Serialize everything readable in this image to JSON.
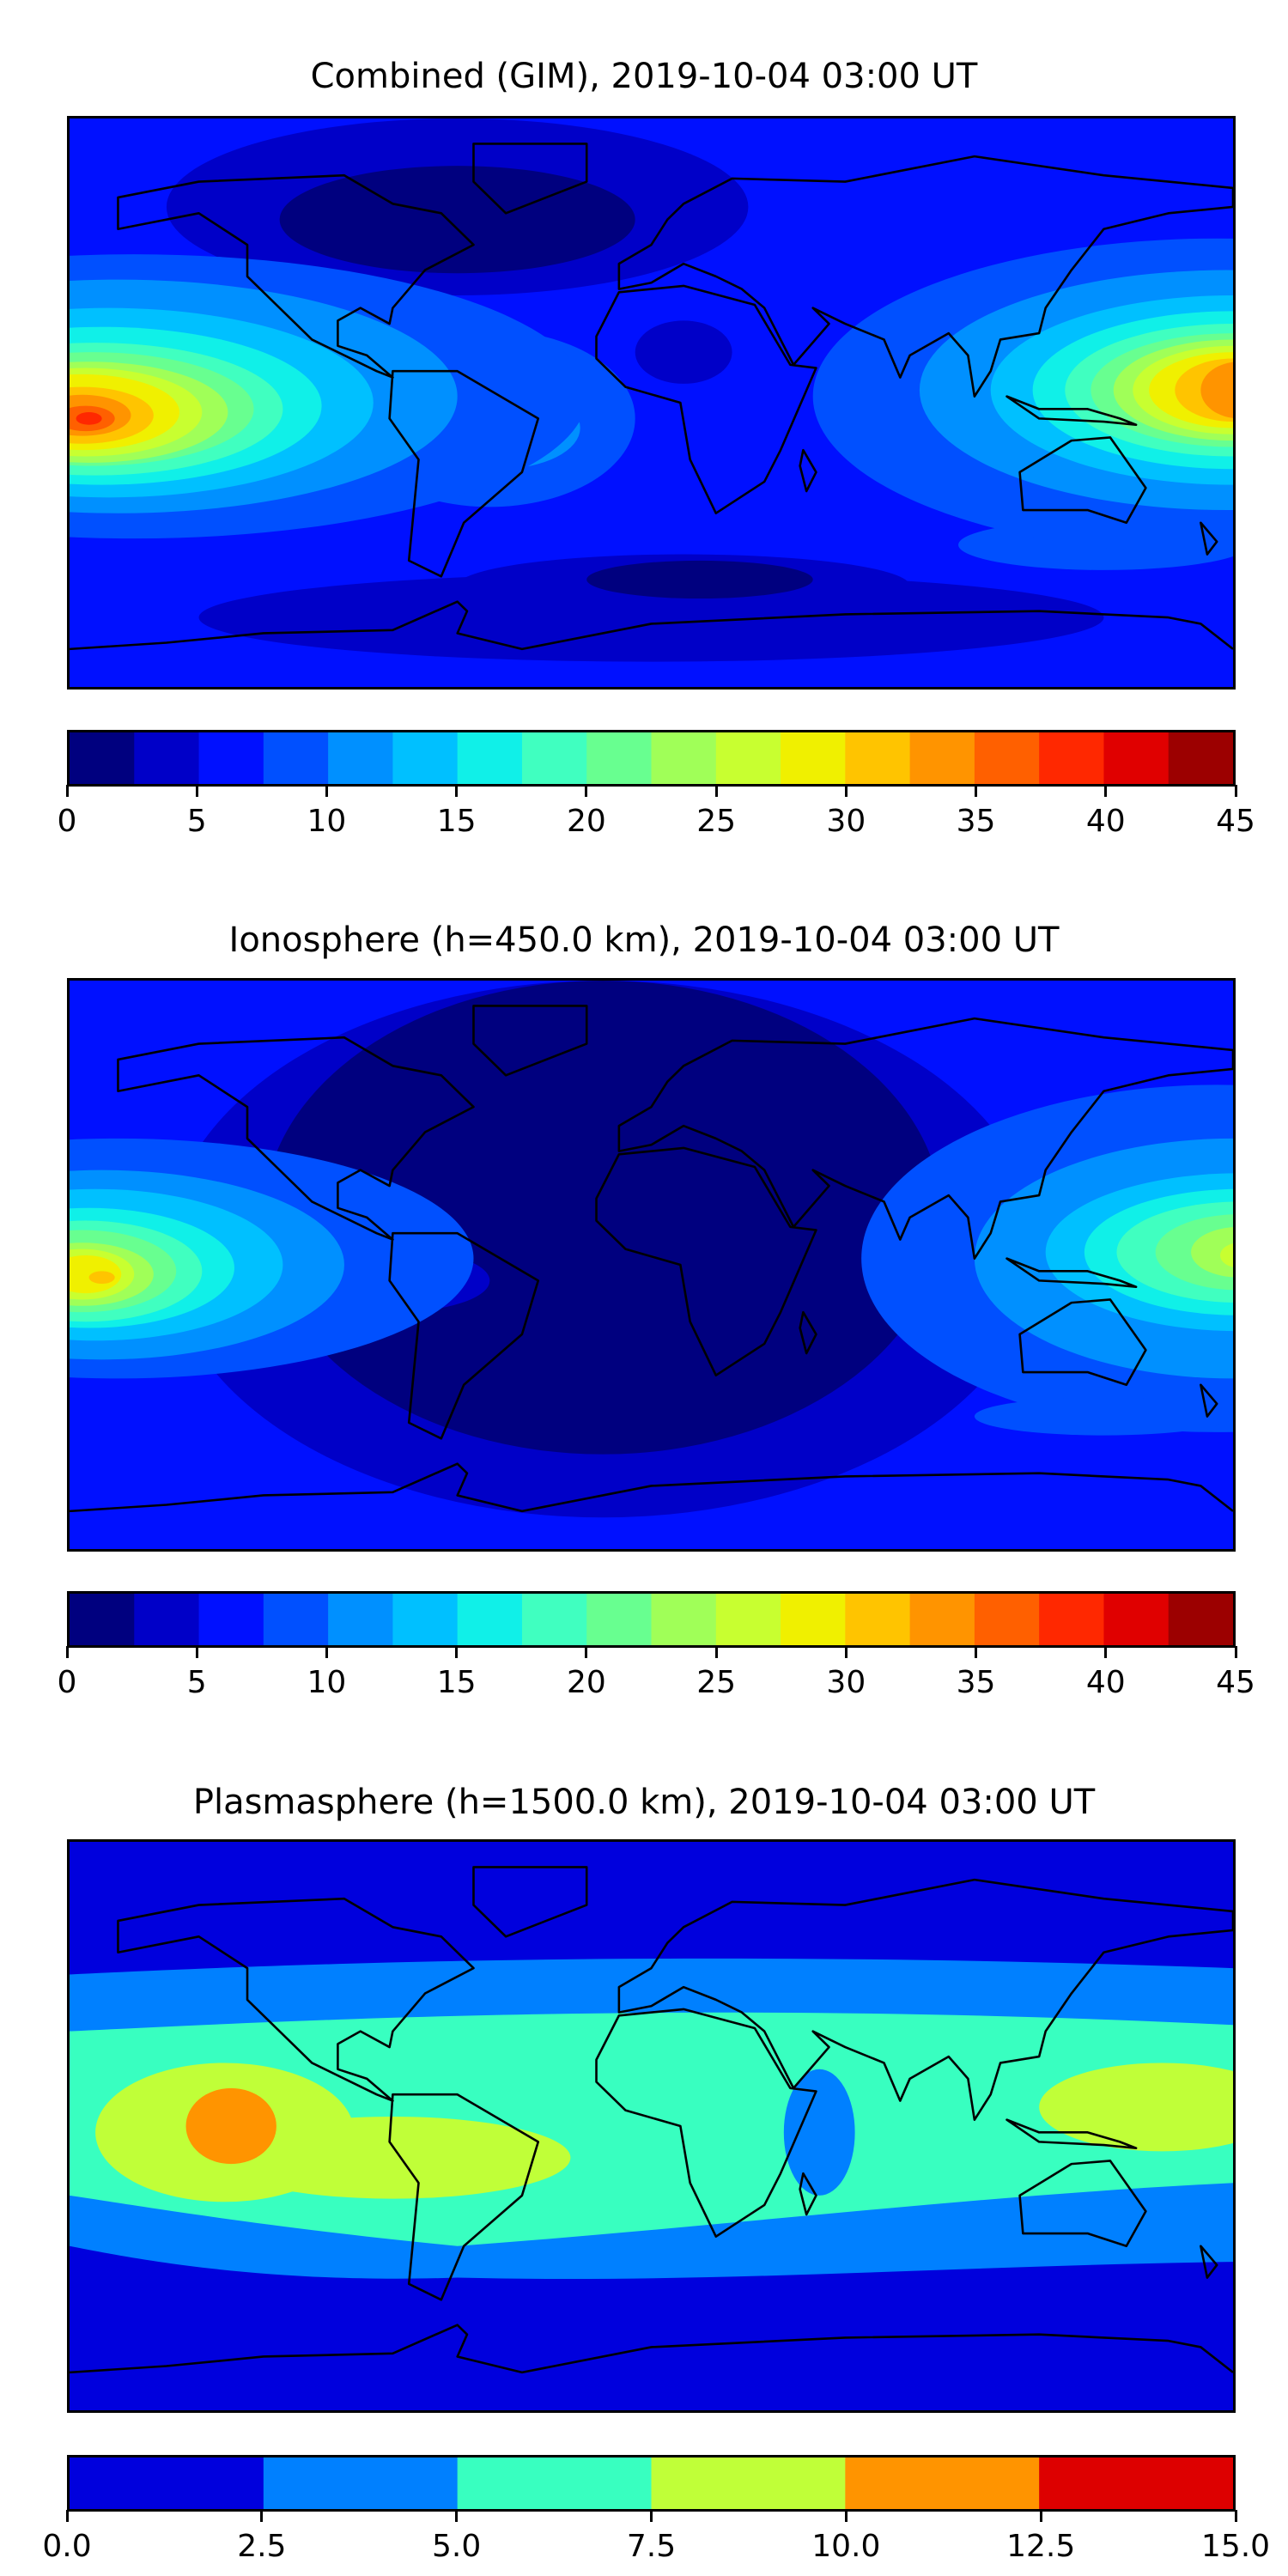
{
  "chart_data": [
    {
      "type": "heatmap",
      "title": "Combined (GIM), 2019-10-04 03:00 UT",
      "projection": "equirectangular world map with coastlines",
      "levels": [
        0,
        2.5,
        5,
        7.5,
        10,
        12.5,
        15,
        17.5,
        20,
        22.5,
        25,
        27.5,
        30,
        32.5,
        35,
        37.5,
        40,
        42.5,
        45
      ],
      "colors": [
        "#00007f",
        "#0000c8",
        "#0010ff",
        "#0050ff",
        "#0090ff",
        "#00c0ff",
        "#10f0e8",
        "#40ffc0",
        "#68ff90",
        "#a0ff58",
        "#c8ff30",
        "#f0f000",
        "#ffc400",
        "#ff9400",
        "#ff6000",
        "#ff2800",
        "#e00000",
        "#9c0000"
      ],
      "tick_labels": [
        "0",
        "5",
        "10",
        "15",
        "20",
        "25",
        "30",
        "35",
        "40",
        "45"
      ],
      "range": [
        0,
        45
      ],
      "max_regions": [
        {
          "location": "central Pacific (lon -180, lat -5)",
          "value_range": "37.5-40"
        },
        {
          "location": "western Pacific (lon 170, lat 0)",
          "value_range": "32.5-35"
        }
      ]
    },
    {
      "type": "heatmap",
      "title": "Ionosphere  (h=450.0 km), 2019-10-04 03:00 UT",
      "projection": "equirectangular world map with coastlines",
      "levels": [
        0,
        2.5,
        5,
        7.5,
        10,
        12.5,
        15,
        17.5,
        20,
        22.5,
        25,
        27.5,
        30,
        32.5,
        35,
        37.5,
        40,
        42.5,
        45
      ],
      "colors": [
        "#00007f",
        "#0000c8",
        "#0010ff",
        "#0050ff",
        "#0090ff",
        "#00c0ff",
        "#10f0e8",
        "#40ffc0",
        "#68ff90",
        "#a0ff58",
        "#c8ff30",
        "#f0f000",
        "#ffc400",
        "#ff9400",
        "#ff6000",
        "#ff2800",
        "#e00000",
        "#9c0000"
      ],
      "tick_labels": [
        "0",
        "5",
        "10",
        "15",
        "20",
        "25",
        "30",
        "35",
        "40",
        "45"
      ],
      "range": [
        0,
        45
      ]
    },
    {
      "type": "heatmap",
      "title": "Plasmasphere (h=1500.0 km), 2019-10-04 03:00 UT",
      "projection": "equirectangular world map with coastlines",
      "levels": [
        0,
        2.5,
        5,
        7.5,
        10,
        12.5,
        15
      ],
      "colors": [
        "#0000dd",
        "#0080ff",
        "#38ffc0",
        "#c0ff38",
        "#ff9400",
        "#dd0000"
      ],
      "tick_labels": [
        "0.0",
        "2.5",
        "5.0",
        "7.5",
        "10.0",
        "12.5",
        "15.0"
      ],
      "range": [
        0,
        15
      ]
    }
  ]
}
